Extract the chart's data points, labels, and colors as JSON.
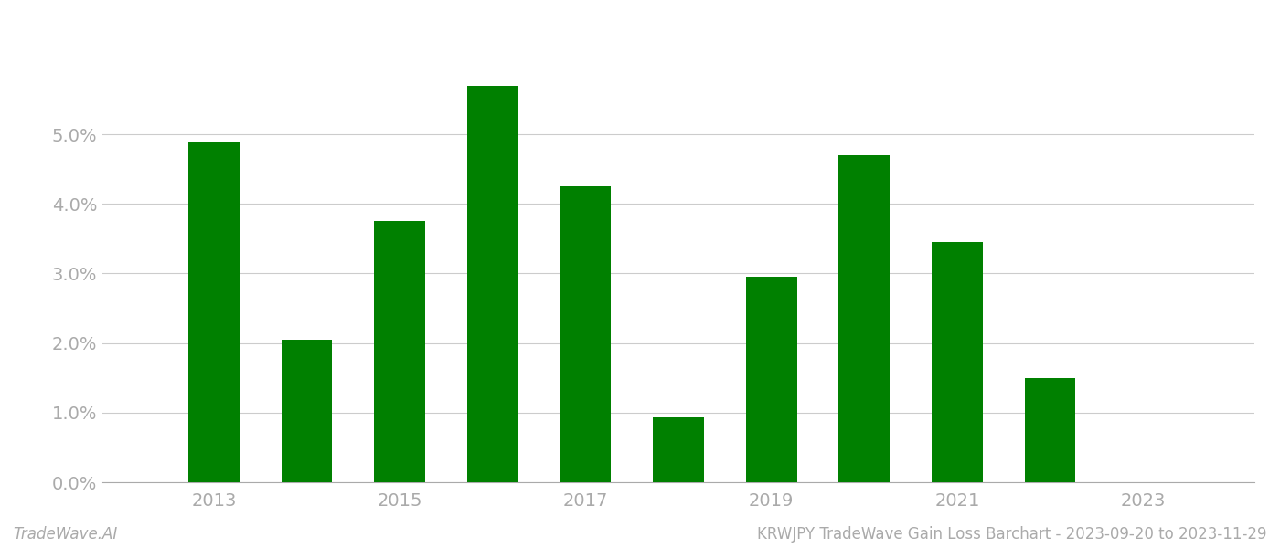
{
  "years": [
    2013,
    2014,
    2015,
    2016,
    2017,
    2018,
    2019,
    2020,
    2021,
    2022,
    2023
  ],
  "values": [
    0.049,
    0.0205,
    0.0375,
    0.057,
    0.0425,
    0.0093,
    0.0295,
    0.047,
    0.0345,
    0.015,
    0.0
  ],
  "bar_color": "#008000",
  "background_color": "#ffffff",
  "title": "KRWJPY TradeWave Gain Loss Barchart - 2023-09-20 to 2023-11-29",
  "footer_left": "TradeWave.AI",
  "ylim": [
    0,
    0.063
  ],
  "yticks": [
    0.0,
    0.01,
    0.02,
    0.03,
    0.04,
    0.05
  ],
  "grid_color": "#cccccc",
  "tick_color": "#aaaaaa",
  "bar_width": 0.55,
  "xlim": [
    2011.8,
    2024.2
  ],
  "tick_fontsize": 14,
  "footer_fontsize": 12
}
